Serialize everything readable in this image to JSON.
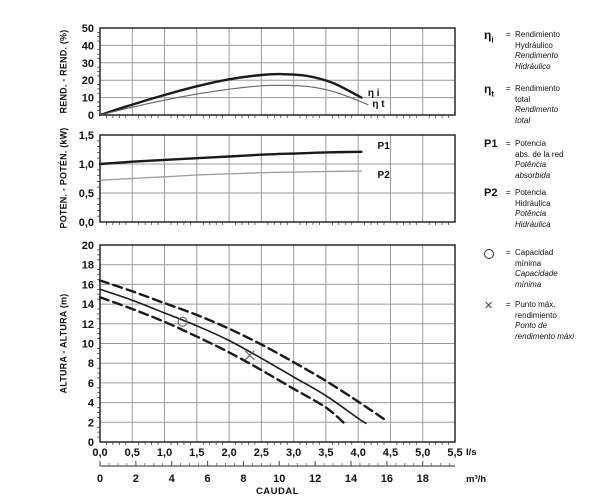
{
  "colors": {
    "grid": "#9a9a9a",
    "frame": "#1a1a1a",
    "curve_dark": "#1a1a1a",
    "curve_gray": "#666666",
    "curve_light_gray": "#9a9a9a",
    "marker": "#666666"
  },
  "axis_bottom": {
    "primary_labels": [
      "0,0",
      "0,5",
      "1,0",
      "1,5",
      "2,0",
      "2,5",
      "3,0",
      "3,5",
      "4,0",
      "4,5",
      "5,0",
      "5,5"
    ],
    "primary_unit": "l/s",
    "secondary_labels": [
      "0",
      "2",
      "4",
      "6",
      "8",
      "10",
      "12",
      "14",
      "16",
      "18"
    ],
    "secondary_unit": "m³/h",
    "secondary_max": 19.8,
    "title": "CAUDAL"
  },
  "chart_data": [
    {
      "type": "line",
      "name": "efficiency",
      "ylabel": "REND. - REND. (%)",
      "xlabel": "",
      "xlim": [
        0,
        5.5
      ],
      "ylim": [
        0,
        50
      ],
      "x_grid_step": 0.5,
      "x_minor_step": 0.1,
      "y_minor_step": 2.5,
      "y_tick_values": [
        0,
        10,
        20,
        30,
        40,
        50
      ],
      "y_tick_labels": [
        "0",
        "10",
        "20",
        "30",
        "40",
        "50"
      ],
      "grid": true,
      "series": [
        {
          "name": "eta-hydraulic",
          "label": "η i",
          "color": "#1a1a1a",
          "width": 2.4,
          "points": [
            [
              0,
              0
            ],
            [
              0.5,
              6
            ],
            [
              1.0,
              11.5
            ],
            [
              1.5,
              16.5
            ],
            [
              2.0,
              20.5
            ],
            [
              2.5,
              23
            ],
            [
              2.8,
              23.5
            ],
            [
              3.2,
              22.5
            ],
            [
              3.6,
              18.5
            ],
            [
              4.05,
              10
            ]
          ],
          "label_at": [
            4.15,
            11
          ]
        },
        {
          "name": "eta-total",
          "label": "η t",
          "color": "#666666",
          "width": 1.1,
          "points": [
            [
              0,
              0
            ],
            [
              0.5,
              4.5
            ],
            [
              1.0,
              8.5
            ],
            [
              1.5,
              12
            ],
            [
              2.0,
              14.8
            ],
            [
              2.5,
              16.8
            ],
            [
              2.9,
              17
            ],
            [
              3.3,
              16
            ],
            [
              3.7,
              12.5
            ],
            [
              4.15,
              6
            ]
          ],
          "label_at": [
            4.22,
            4.5
          ]
        }
      ]
    },
    {
      "type": "line",
      "name": "power",
      "ylabel": "POTEN. - POTÉN. (kW)",
      "xlabel": "",
      "xlim": [
        0,
        5.5
      ],
      "ylim": [
        0,
        1.5
      ],
      "x_grid_step": 0.5,
      "x_minor_step": 0.1,
      "y_minor_step": 0.1,
      "y_tick_values": [
        0,
        0.5,
        1.0,
        1.5
      ],
      "y_tick_labels": [
        "0,0",
        "0,5",
        "1,0",
        "1,5"
      ],
      "grid": true,
      "series": [
        {
          "name": "p1-absorbed-power",
          "label": "P1",
          "color": "#1a1a1a",
          "width": 2.4,
          "points": [
            [
              0,
              1.0
            ],
            [
              0.5,
              1.04
            ],
            [
              1.0,
              1.07
            ],
            [
              1.5,
              1.1
            ],
            [
              2.0,
              1.13
            ],
            [
              2.5,
              1.16
            ],
            [
              3.0,
              1.18
            ],
            [
              3.5,
              1.2
            ],
            [
              4.05,
              1.21
            ]
          ],
          "label_at": [
            4.3,
            1.26
          ]
        },
        {
          "name": "p2-hydraulic-power",
          "label": "P2",
          "color": "#9a9a9a",
          "width": 1.3,
          "points": [
            [
              0,
              0.72
            ],
            [
              0.5,
              0.75
            ],
            [
              1.0,
              0.78
            ],
            [
              1.5,
              0.81
            ],
            [
              2.0,
              0.83
            ],
            [
              2.5,
              0.85
            ],
            [
              3.0,
              0.86
            ],
            [
              3.5,
              0.87
            ],
            [
              4.05,
              0.88
            ]
          ],
          "label_at": [
            4.3,
            0.76
          ]
        }
      ]
    },
    {
      "type": "line",
      "name": "head",
      "ylabel": "ALTURA - ALTURA (m)",
      "xlabel": "CAUDAL",
      "xlim": [
        0,
        5.5
      ],
      "ylim": [
        0,
        20
      ],
      "x_grid_step": 0.5,
      "x_minor_step": 0.1,
      "y_minor_step": 0.5,
      "y_tick_values": [
        0,
        2,
        4,
        6,
        8,
        10,
        12,
        14,
        16,
        18,
        20
      ],
      "y_tick_labels": [
        "0",
        "2",
        "4",
        "6",
        "8",
        "10",
        "12",
        "14",
        "16",
        "18",
        "20"
      ],
      "x_tick_labels": [
        "0,0",
        "0,5",
        "1,0",
        "1,5",
        "2,0",
        "2,5",
        "3,0",
        "3,5",
        "4,0",
        "4,5",
        "5,0",
        "5,5"
      ],
      "grid": true,
      "series": [
        {
          "name": "head-upper-tolerance",
          "label": "",
          "color": "#1a1a1a",
          "width": 2.4,
          "dash": "9,5",
          "points": [
            [
              0,
              16.4
            ],
            [
              0.5,
              15.3
            ],
            [
              1.0,
              14.1
            ],
            [
              1.5,
              12.9
            ],
            [
              2.0,
              11.5
            ],
            [
              2.5,
              9.9
            ],
            [
              3.0,
              8.1
            ],
            [
              3.5,
              6.2
            ],
            [
              4.0,
              4.1
            ],
            [
              4.45,
              2.1
            ]
          ]
        },
        {
          "name": "head-nominal",
          "label": "",
          "color": "#1a1a1a",
          "width": 1.6,
          "points": [
            [
              0,
              15.5
            ],
            [
              0.5,
              14.4
            ],
            [
              1.0,
              13.1
            ],
            [
              1.5,
              11.8
            ],
            [
              2.0,
              10.3
            ],
            [
              2.5,
              8.5
            ],
            [
              3.0,
              6.6
            ],
            [
              3.5,
              4.7
            ],
            [
              4.0,
              2.4
            ],
            [
              4.12,
              1.9
            ]
          ]
        },
        {
          "name": "head-lower-tolerance",
          "label": "",
          "color": "#1a1a1a",
          "width": 2.4,
          "dash": "9,5",
          "points": [
            [
              0,
              14.7
            ],
            [
              0.5,
              13.5
            ],
            [
              1.0,
              12.2
            ],
            [
              1.5,
              10.7
            ],
            [
              2.0,
              9.1
            ],
            [
              2.5,
              7.3
            ],
            [
              3.0,
              5.4
            ],
            [
              3.5,
              3.5
            ],
            [
              3.82,
              1.7
            ]
          ]
        }
      ],
      "markers": [
        {
          "name": "min-capacity-marker",
          "shape": "circle",
          "at": [
            1.28,
            12.2
          ]
        },
        {
          "name": "best-efficiency-marker",
          "shape": "cross",
          "at": [
            2.32,
            8.8
          ]
        }
      ]
    }
  ],
  "legend": {
    "items": [
      {
        "name": "eta-hydraulic",
        "sym": "η",
        "sub": "i",
        "eq": "=",
        "lines": [
          {
            "t": "Rendimiento"
          },
          {
            "t": "Hydráulico"
          },
          {
            "t": "Rendimento",
            "i": true
          },
          {
            "t": "Hidráulico",
            "i": true
          }
        ]
      },
      {
        "name": "eta-total",
        "sym": "η",
        "sub": "t",
        "eq": "=",
        "lines": [
          {
            "t": "Rendimiento"
          },
          {
            "t": "total"
          },
          {
            "t": "Rendimento",
            "i": true
          },
          {
            "t": "total",
            "i": true
          }
        ]
      },
      {
        "name": "p1",
        "sym": "P1",
        "eq": "=",
        "lines": [
          {
            "t": "Potencia"
          },
          {
            "t": "abs. de la red"
          },
          {
            "t": "Potência",
            "i": true
          },
          {
            "t": "absorbida",
            "i": true
          }
        ]
      },
      {
        "name": "p2",
        "sym": "P2",
        "eq": "=",
        "lines": [
          {
            "t": "Potencia"
          },
          {
            "t": "Hidráulica"
          },
          {
            "t": "Potência",
            "i": true
          },
          {
            "t": "Hidráulica",
            "i": true
          }
        ]
      },
      {
        "name": "min-capacity",
        "shape": "circle",
        "eq": "=",
        "lines": [
          {
            "t": "Capacidad"
          },
          {
            "t": "mínima"
          },
          {
            "t": "Capacidade",
            "i": true
          },
          {
            "t": "mínima",
            "i": true
          }
        ]
      },
      {
        "name": "max-efficiency",
        "shape": "cross",
        "eq": "=",
        "lines": [
          {
            "t": "Punto máx."
          },
          {
            "t": "rendimiento"
          },
          {
            "t": "Ponto de",
            "i": true
          },
          {
            "t": "rendimento máxi",
            "i": true
          }
        ]
      }
    ]
  }
}
